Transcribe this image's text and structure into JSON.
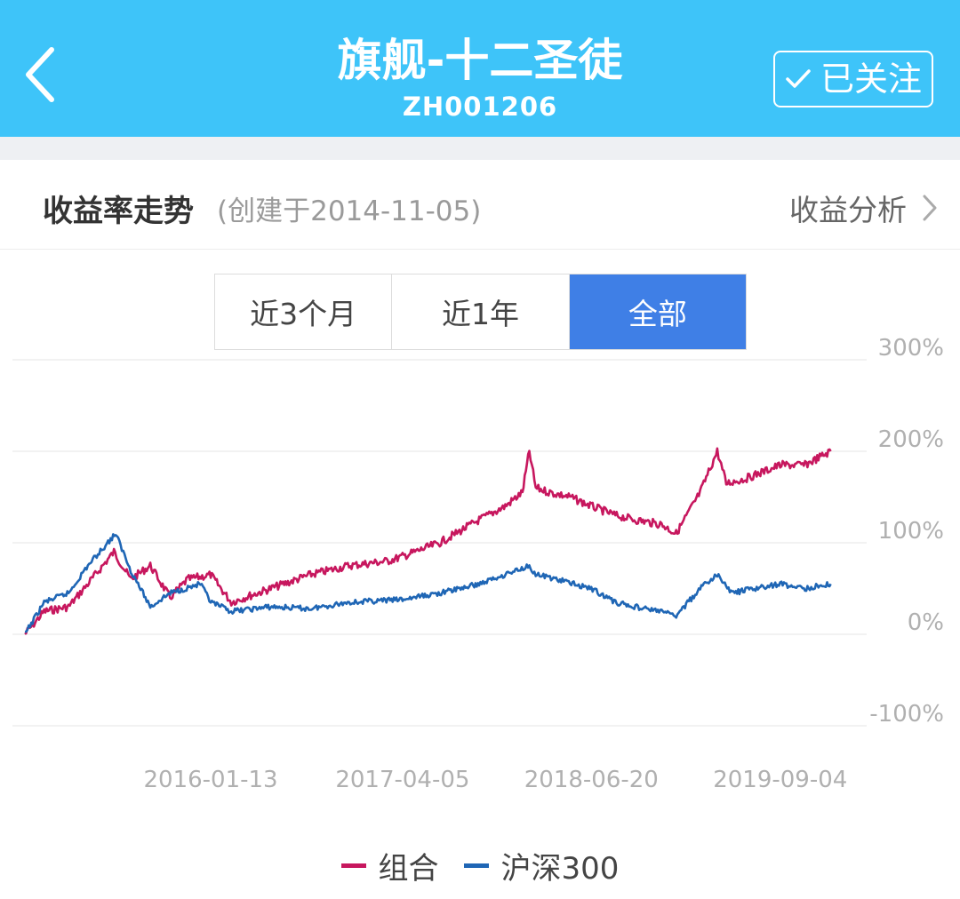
{
  "header": {
    "title": "旗舰-十二圣徒",
    "code": "ZH001206",
    "follow_label": "已关注",
    "back_icon": "chevron-left-icon",
    "check_icon": "check-icon"
  },
  "section": {
    "title": "收益率走势",
    "subtitle": "(创建于2014-11-05)",
    "analysis_label": "收益分析",
    "analysis_icon": "chevron-right-icon"
  },
  "tabs": [
    {
      "label": "近3个月",
      "active": false
    },
    {
      "label": "近1年",
      "active": false
    },
    {
      "label": "全部",
      "active": true
    }
  ],
  "chart_data": {
    "type": "line",
    "x_tick_labels": [
      "2016-01-13",
      "2017-04-05",
      "2018-06-20",
      "2019-09-04"
    ],
    "y_tick_labels": [
      "300%",
      "200%",
      "100%",
      "0%",
      "-100%"
    ],
    "y_ticks": [
      300,
      200,
      100,
      0,
      -100
    ],
    "ylim": [
      -100,
      300
    ],
    "xlim": [
      "2014-11-05",
      "2020-02-01"
    ],
    "grid": true,
    "legend_position": "bottom",
    "series": [
      {
        "name": "组合",
        "color": "#c7175e",
        "x": [
          "2014-11-05",
          "2014-12-20",
          "2015-02-15",
          "2015-04-01",
          "2015-06-01",
          "2015-07-10",
          "2015-08-25",
          "2015-10-10",
          "2015-11-20",
          "2016-01-13",
          "2016-03-01",
          "2016-06-01",
          "2016-09-01",
          "2016-12-01",
          "2017-03-01",
          "2017-04-05",
          "2017-07-01",
          "2017-10-01",
          "2017-12-01",
          "2018-01-10",
          "2018-01-26",
          "2018-02-10",
          "2018-03-15",
          "2018-05-01",
          "2018-06-20",
          "2018-08-15",
          "2018-10-01",
          "2018-12-01",
          "2019-01-04",
          "2019-03-01",
          "2019-04-10",
          "2019-05-01",
          "2019-06-15",
          "2019-09-04",
          "2019-11-01",
          "2019-12-31"
        ],
        "values": [
          0,
          25,
          30,
          55,
          90,
          60,
          75,
          40,
          60,
          65,
          35,
          50,
          65,
          75,
          80,
          85,
          100,
          125,
          140,
          155,
          200,
          160,
          155,
          150,
          140,
          130,
          125,
          120,
          110,
          155,
          200,
          165,
          170,
          185,
          185,
          200
        ]
      },
      {
        "name": "沪深300",
        "color": "#1f66b5",
        "x": [
          "2014-11-05",
          "2014-12-20",
          "2015-02-15",
          "2015-04-01",
          "2015-06-05",
          "2015-07-10",
          "2015-08-25",
          "2015-10-10",
          "2015-12-20",
          "2016-01-13",
          "2016-03-01",
          "2016-06-01",
          "2016-09-01",
          "2016-12-01",
          "2017-04-05",
          "2017-07-01",
          "2017-10-01",
          "2018-01-26",
          "2018-02-10",
          "2018-03-15",
          "2018-06-20",
          "2018-08-15",
          "2018-10-01",
          "2018-12-01",
          "2019-01-04",
          "2019-03-01",
          "2019-04-10",
          "2019-05-15",
          "2019-06-15",
          "2019-09-04",
          "2019-11-01",
          "2019-12-31"
        ],
        "values": [
          0,
          35,
          45,
          75,
          110,
          70,
          30,
          45,
          55,
          35,
          25,
          30,
          28,
          35,
          38,
          45,
          55,
          75,
          65,
          62,
          50,
          35,
          30,
          25,
          20,
          50,
          65,
          45,
          48,
          55,
          50,
          55
        ]
      }
    ]
  }
}
